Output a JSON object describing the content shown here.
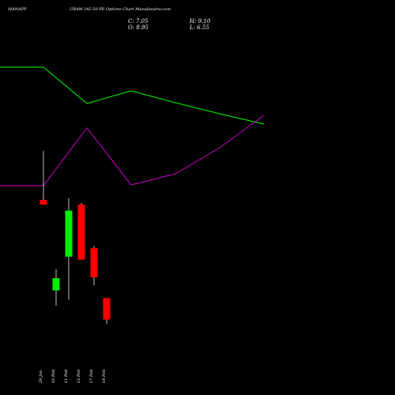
{
  "header": {
    "symbol": "MANAPP",
    "title": "URAM 242.50 PE Options Chart Munafasutra.com",
    "close": "C: 7.05",
    "high": "H: 9.10",
    "open": "O: 8.95",
    "low": "L: 6.55"
  },
  "colors": {
    "background": "#000000",
    "up": "#00ee00",
    "down": "#ff0000",
    "green_line": "#00ff00",
    "magenta_line": "#cc00cc",
    "text": "#ffffff"
  },
  "chart_data": {
    "type": "candlestick",
    "categories": [
      "29 Jan",
      "10 Feb",
      "11 Feb",
      "12 Feb",
      "17 Feb",
      "18 Feb"
    ],
    "candles": [
      {
        "date": "29 Jan",
        "open": 12.1,
        "high": 15.3,
        "low": 11.8,
        "close": 11.8
      },
      {
        "date": "10 Feb",
        "open": 6.2,
        "high": 7.6,
        "low": 5.2,
        "close": 7.0
      },
      {
        "date": "11 Feb",
        "open": 8.4,
        "high": 12.2,
        "low": 5.6,
        "close": 11.4
      },
      {
        "date": "12 Feb",
        "open": 11.8,
        "high": 11.9,
        "low": 8.2,
        "close": 8.2
      },
      {
        "date": "17 Feb",
        "open": 8.95,
        "high": 9.1,
        "low": 6.55,
        "close": 7.05
      },
      {
        "date": "18 Feb",
        "open": 5.7,
        "high": 5.7,
        "low": 4.0,
        "close": 4.3
      }
    ],
    "series": [
      {
        "values": [
          43,
          43,
          21,
          28,
          23,
          16
        ]
      },
      {
        "values": [
          8,
          8,
          45,
          9,
          13,
          32
        ]
      }
    ]
  }
}
